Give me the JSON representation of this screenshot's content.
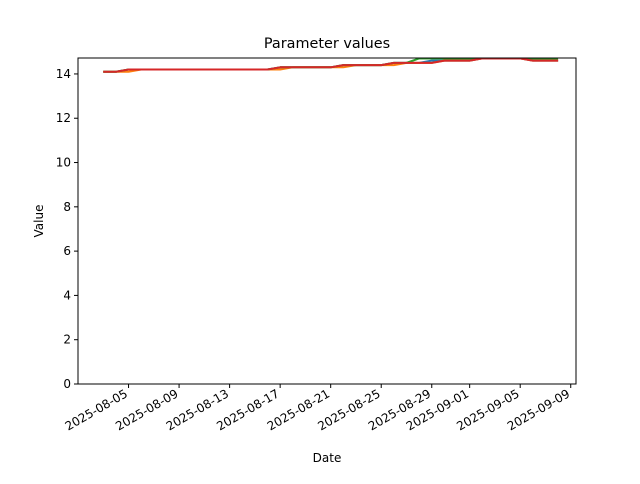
{
  "chart_data": {
    "type": "line",
    "title": "Parameter values",
    "xlabel": "Date",
    "ylabel": "Value",
    "x": [
      "2025-08-03",
      "2025-08-04",
      "2025-08-05",
      "2025-08-06",
      "2025-08-07",
      "2025-08-08",
      "2025-08-09",
      "2025-08-10",
      "2025-08-11",
      "2025-08-12",
      "2025-08-13",
      "2025-08-14",
      "2025-08-15",
      "2025-08-16",
      "2025-08-17",
      "2025-08-18",
      "2025-08-19",
      "2025-08-20",
      "2025-08-21",
      "2025-08-22",
      "2025-08-23",
      "2025-08-24",
      "2025-08-25",
      "2025-08-26",
      "2025-08-27",
      "2025-08-28",
      "2025-08-29",
      "2025-08-30",
      "2025-08-31",
      "2025-09-01",
      "2025-09-02",
      "2025-09-03",
      "2025-09-04",
      "2025-09-05",
      "2025-09-06",
      "2025-09-07",
      "2025-09-08"
    ],
    "series": [
      {
        "color": "#1f77b4",
        "values": [
          14.1,
          14.1,
          14.2,
          14.2,
          14.2,
          14.2,
          14.2,
          14.2,
          14.2,
          14.2,
          14.2,
          14.2,
          14.2,
          14.2,
          14.3,
          14.3,
          14.3,
          14.3,
          14.3,
          14.4,
          14.4,
          14.4,
          14.4,
          14.5,
          14.5,
          14.5,
          14.6,
          14.6,
          14.6,
          14.6,
          14.7,
          14.7,
          14.7,
          14.7,
          14.6,
          14.6,
          14.6
        ]
      },
      {
        "color": "#ff7f0e",
        "values": [
          14.1,
          14.1,
          14.1,
          14.2,
          14.2,
          14.2,
          14.2,
          14.2,
          14.2,
          14.2,
          14.2,
          14.2,
          14.2,
          14.2,
          14.2,
          14.3,
          14.3,
          14.3,
          14.3,
          14.3,
          14.4,
          14.4,
          14.4,
          14.4,
          14.5,
          14.5,
          14.5,
          14.6,
          14.6,
          14.6,
          14.7,
          14.7,
          14.7,
          14.7,
          14.6,
          14.6,
          14.6
        ]
      },
      {
        "color": "#2ca02c",
        "values": [
          14.1,
          14.1,
          14.2,
          14.2,
          14.2,
          14.2,
          14.2,
          14.2,
          14.2,
          14.2,
          14.2,
          14.2,
          14.2,
          14.2,
          14.3,
          14.3,
          14.3,
          14.3,
          14.3,
          14.4,
          14.4,
          14.4,
          14.4,
          14.5,
          14.5,
          14.7,
          14.7,
          14.7,
          14.7,
          14.7,
          14.7,
          14.7,
          14.7,
          14.7,
          14.7,
          14.7,
          14.7
        ]
      },
      {
        "color": "#d62728",
        "values": [
          14.1,
          14.1,
          14.2,
          14.2,
          14.2,
          14.2,
          14.2,
          14.2,
          14.2,
          14.2,
          14.2,
          14.2,
          14.2,
          14.2,
          14.3,
          14.3,
          14.3,
          14.3,
          14.3,
          14.4,
          14.4,
          14.4,
          14.4,
          14.5,
          14.5,
          14.5,
          14.5,
          14.6,
          14.6,
          14.6,
          14.7,
          14.7,
          14.7,
          14.7,
          14.6,
          14.6,
          14.6
        ]
      }
    ],
    "xlim": [
      "2025-08-01",
      "2025-09-09T10:00"
    ],
    "xticks": [
      "2025-08-05",
      "2025-08-09",
      "2025-08-13",
      "2025-08-17",
      "2025-08-21",
      "2025-08-25",
      "2025-08-29",
      "2025-09-01",
      "2025-09-05",
      "2025-09-09"
    ],
    "ylim": [
      0,
      14.72
    ],
    "yticks": [
      0,
      2,
      4,
      6,
      8,
      10,
      12,
      14
    ],
    "grid": false
  }
}
